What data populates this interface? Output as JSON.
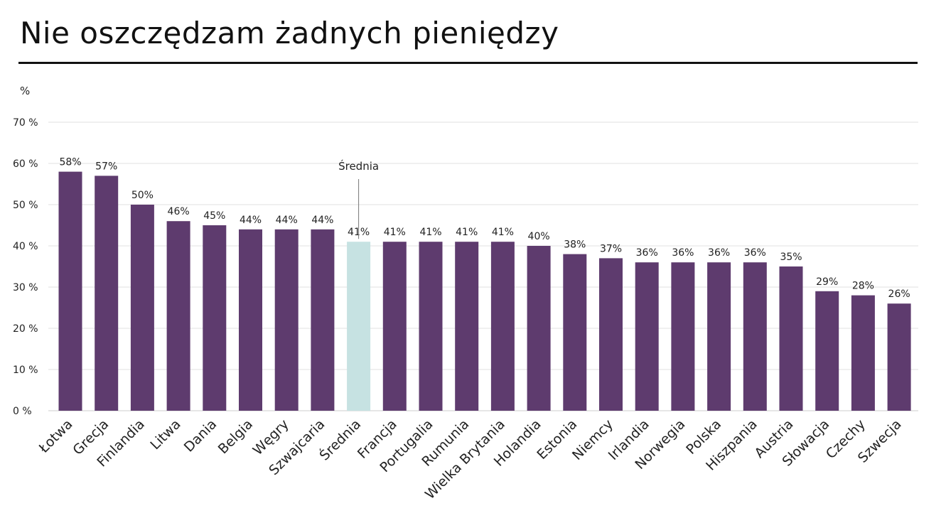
{
  "page": {
    "title": "Nie oszczędzam żadnych pieniędzy"
  },
  "chart_data": {
    "type": "bar",
    "title": "Nie oszczędzam żadnych pieniędzy",
    "ylabel": "%",
    "xlabel": "",
    "ylim": [
      0,
      70
    ],
    "yticks": [
      0,
      10,
      20,
      30,
      40,
      50,
      60,
      70
    ],
    "ytick_labels": [
      "0 %",
      "10 %",
      "20 %",
      "30 %",
      "40 %",
      "50 %",
      "60 %",
      "70 %"
    ],
    "grid": true,
    "categories": [
      "Łotwa",
      "Grecja",
      "Finlandia",
      "Litwa",
      "Dania",
      "Belgia",
      "Węgry",
      "Szwajcaria",
      "Średnia",
      "Francja",
      "Portugalia",
      "Rumunia",
      "Wielka Brytania",
      "Holandia",
      "Estonia",
      "Niemcy",
      "Irlandia",
      "Norwegia",
      "Polska",
      "Hiszpania",
      "Austria",
      "Słowacja",
      "Czechy",
      "Szwecja"
    ],
    "values": [
      58,
      57,
      50,
      46,
      45,
      44,
      44,
      44,
      41,
      41,
      41,
      41,
      41,
      40,
      38,
      37,
      36,
      36,
      36,
      36,
      35,
      29,
      28,
      26
    ],
    "value_labels": [
      "58%",
      "57%",
      "50%",
      "46%",
      "45%",
      "44%",
      "44%",
      "44%",
      "41%",
      "41%",
      "41%",
      "41%",
      "41%",
      "40%",
      "38%",
      "37%",
      "36%",
      "36%",
      "36%",
      "36%",
      "35%",
      "29%",
      "28%",
      "26%"
    ],
    "highlight_index": 8,
    "annotation": {
      "text": "Średnia",
      "category": "Średnia"
    },
    "colors": {
      "bar": "#5e3b6e",
      "highlight": "#c6e2e2",
      "grid": "#e2e2e2",
      "axis": "#cccccc",
      "text": "#222222"
    }
  }
}
